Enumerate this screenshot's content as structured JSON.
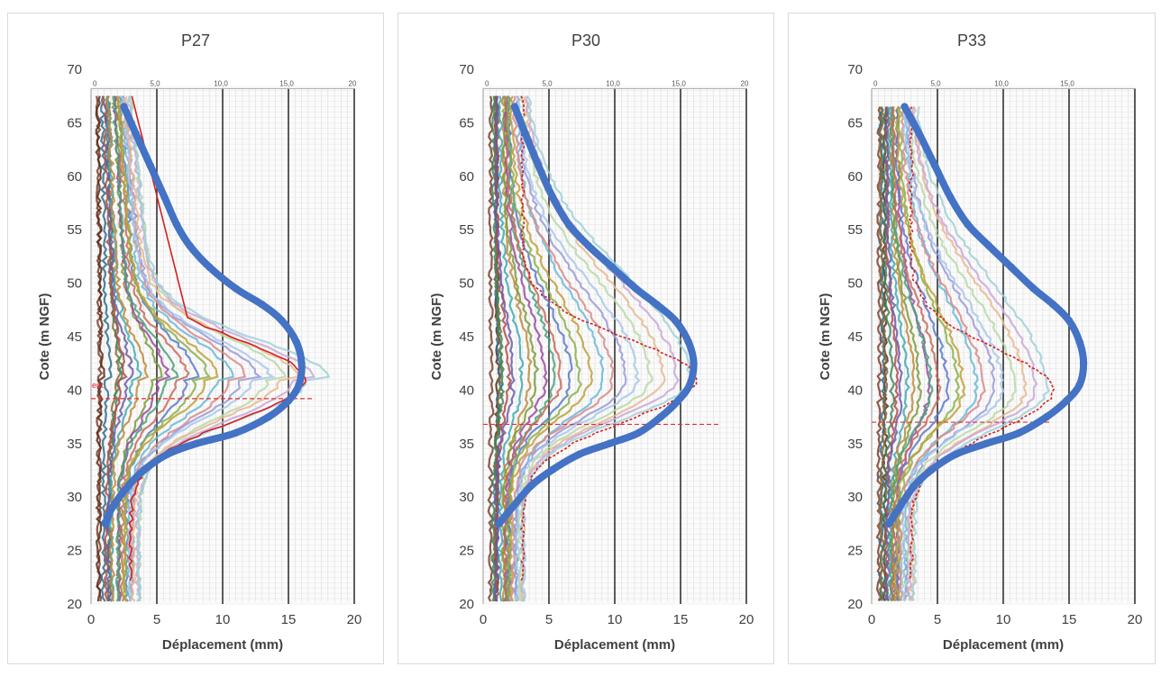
{
  "colors": {
    "fitted_curve": "#4472C4",
    "envelope_red": "#D42020",
    "threshold_dashed": "#E03030",
    "inclinometer_series": [
      "#7B3F2E",
      "#5B2C1A",
      "#2E6E8E",
      "#8B6A3A",
      "#3A8A5A",
      "#B04A4A",
      "#6A5AA8",
      "#3FA9B0",
      "#C08A3A",
      "#7A9A3A",
      "#9A4AA0",
      "#4AA07A",
      "#C86A5A",
      "#5A7AC8",
      "#8AB04A",
      "#C0A03A",
      "#6AB8D8",
      "#D88A8A",
      "#9A9AD8",
      "#A8C8E8",
      "#B8D8A8",
      "#E8B890",
      "#C8A8D8",
      "#A0D0D8"
    ]
  },
  "chart_data": [
    {
      "type": "line",
      "title": "P27",
      "xlabel": "Déplacement (mm)",
      "ylabel": "Cote (m NGF)",
      "xlim": [
        0,
        20
      ],
      "ylim": [
        20,
        70
      ],
      "xticks": [
        "0",
        "5",
        "10",
        "15",
        "20"
      ],
      "yticks": [
        "20",
        "25",
        "30",
        "35",
        "40",
        "45",
        "50",
        "55",
        "60",
        "65",
        "70"
      ],
      "top_scale_ticks": [
        "0",
        "5,0",
        "10,0",
        "15,0",
        "20"
      ],
      "grid": true,
      "annotation": "ent",
      "threshold_elevation": 39.2,
      "inclinometer_top": 67.5,
      "inclinometer_bottom": 20.2,
      "envelope_peak_mm": 16.2,
      "envelope_peak_elevation": 41.0,
      "series": [
        {
          "name": "",
          "x": [
            2.5,
            3.4,
            4.5,
            5.6,
            6.5,
            7.5,
            9.0,
            11.0,
            13.0,
            14.5,
            15.6,
            16.0,
            15.8,
            15.0,
            13.5,
            11.0,
            8.0,
            5.8,
            4.0,
            2.8,
            1.6,
            1.1
          ],
          "y": [
            66.5,
            64.0,
            61.0,
            58.0,
            55.5,
            53.5,
            51.5,
            49.5,
            48.0,
            46.5,
            44.5,
            42.5,
            40.5,
            39.0,
            37.5,
            36.0,
            35.0,
            34.0,
            32.5,
            31.0,
            29.0,
            27.5
          ]
        }
      ]
    },
    {
      "type": "line",
      "title": "P30",
      "xlabel": "Déplacement (mm)",
      "ylabel": "Cote (m NGF)",
      "xlim": [
        0,
        20
      ],
      "ylim": [
        20,
        70
      ],
      "xticks": [
        "0",
        "5",
        "10",
        "15",
        "20"
      ],
      "yticks": [
        "20",
        "25",
        "30",
        "35",
        "40",
        "45",
        "50",
        "55",
        "60",
        "65",
        "70"
      ],
      "top_scale_ticks": [
        "0",
        "5,0",
        "10,0",
        "15,0",
        "20"
      ],
      "grid": true,
      "threshold_elevation": 36.8,
      "inclinometer_top": 67.5,
      "inclinometer_bottom": 20.2,
      "envelope_peak_mm": 16.2,
      "envelope_peak_elevation": 41.0,
      "series": [
        {
          "name": "",
          "x": [
            2.4,
            3.2,
            4.2,
            5.3,
            6.5,
            8.0,
            9.8,
            11.6,
            13.2,
            14.6,
            15.6,
            16.0,
            15.7,
            14.8,
            13.5,
            11.8,
            9.6,
            7.3,
            5.2,
            3.6,
            2.2,
            1.2
          ],
          "y": [
            66.5,
            64.0,
            61.0,
            58.0,
            55.5,
            53.5,
            51.5,
            49.5,
            48.0,
            46.5,
            44.5,
            42.5,
            40.5,
            39.0,
            37.5,
            36.0,
            35.0,
            34.0,
            32.5,
            31.0,
            29.0,
            27.5
          ]
        }
      ]
    },
    {
      "type": "line",
      "title": "P33",
      "xlabel": "Déplacement (mm)",
      "ylabel": "Cote (m NGF)",
      "xlim": [
        0,
        20
      ],
      "ylim": [
        20,
        70
      ],
      "xticks": [
        "0",
        "5",
        "10",
        "15",
        "20"
      ],
      "yticks": [
        "20",
        "25",
        "30",
        "35",
        "40",
        "45",
        "50",
        "55",
        "60",
        "65",
        "70"
      ],
      "top_scale_ticks": [
        "0",
        "5,0",
        "10,0",
        "15,0"
      ],
      "grid": true,
      "threshold_elevation": 37.0,
      "inclinometer_top": 66.5,
      "inclinometer_bottom": 20.2,
      "envelope_peak_mm": 13.8,
      "envelope_peak_elevation": 40.0,
      "series": [
        {
          "name": "",
          "x": [
            2.5,
            3.6,
            4.8,
            6.0,
            7.3,
            8.9,
            10.6,
            12.3,
            13.8,
            15.0,
            15.8,
            16.1,
            15.8,
            14.8,
            13.3,
            11.2,
            8.7,
            6.4,
            4.5,
            3.2,
            2.1,
            1.3
          ],
          "y": [
            66.5,
            64.0,
            61.0,
            58.0,
            55.5,
            53.5,
            51.5,
            49.5,
            48.0,
            46.5,
            44.5,
            42.5,
            40.5,
            39.0,
            37.5,
            36.0,
            35.0,
            34.0,
            32.5,
            31.0,
            29.0,
            27.5
          ]
        }
      ]
    }
  ]
}
